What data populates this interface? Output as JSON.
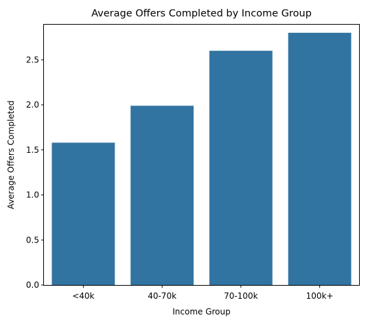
{
  "chart_data": {
    "type": "bar",
    "title": "Average Offers Completed by Income Group",
    "xlabel": "Income Group",
    "ylabel": "Average Offers Completed",
    "categories": [
      "<40k",
      "40-70k",
      "70-100k",
      "100k+"
    ],
    "values": [
      1.58,
      1.99,
      2.6,
      2.8
    ],
    "ylim": [
      0,
      2.89
    ],
    "yticks": [
      0.0,
      0.5,
      1.0,
      1.5,
      2.0,
      2.5
    ],
    "ytick_labels": [
      "0.0",
      "0.5",
      "1.0",
      "1.5",
      "2.0",
      "2.5"
    ],
    "bar_color": "#3274a1",
    "grid": false,
    "legend": "none"
  }
}
